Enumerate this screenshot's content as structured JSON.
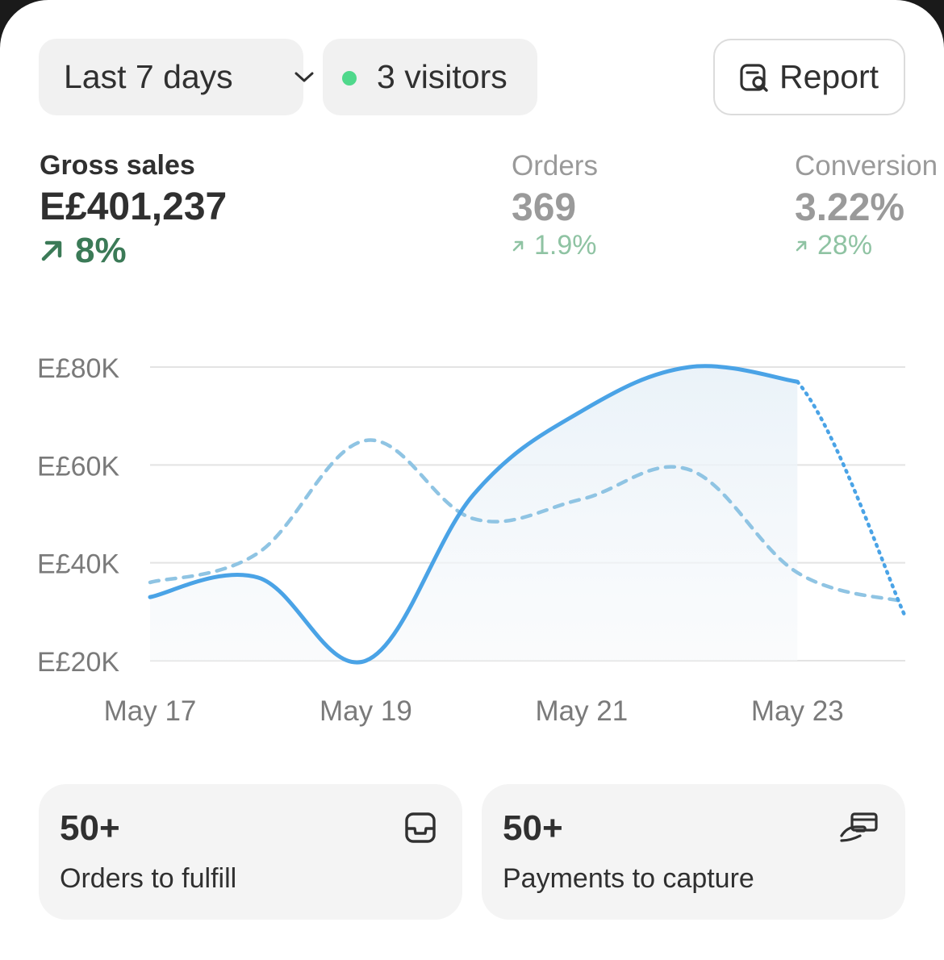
{
  "filters": {
    "date_range": "Last 7 days",
    "visitors": "3 visitors",
    "report_label": "Report"
  },
  "metrics": {
    "gross_sales": {
      "label": "Gross sales",
      "value": "E£401,237",
      "change": "8%"
    },
    "orders": {
      "label": "Orders",
      "value": "369",
      "change": "1.9%"
    },
    "conversion": {
      "label": "Conversion",
      "value": "3.22%",
      "change": "28%"
    }
  },
  "chart_data": {
    "type": "line",
    "y_ticks": [
      "E£80K",
      "E£60K",
      "E£40K",
      "E£20K"
    ],
    "ylim": [
      20000,
      80000
    ],
    "x_tick_labels": [
      "May 17",
      "May 19",
      "May 21",
      "May 23"
    ],
    "colors": {
      "current": "#4aa3e6",
      "previous": "#8fc4e3",
      "grid": "#e3e3e3"
    },
    "series": [
      {
        "x": [
          "May 17",
          "May 18",
          "May 19",
          "May 20",
          "May 21",
          "May 22",
          "May 23",
          "May 24"
        ],
        "values": [
          33000,
          37000,
          20000,
          54000,
          71000,
          80000,
          77000,
          29000
        ],
        "style": "solid"
      },
      {
        "x": [
          "May 17",
          "May 18",
          "May 19",
          "May 20",
          "May 21",
          "May 22",
          "May 23",
          "May 24"
        ],
        "values": [
          36000,
          42000,
          65000,
          49000,
          53000,
          59000,
          38000,
          32000
        ],
        "style": "dashed"
      }
    ]
  },
  "tiles": [
    {
      "count": "50+",
      "label": "Orders to fulfill",
      "icon": "inbox-icon"
    },
    {
      "count": "50+",
      "label": "Payments to capture",
      "icon": "hand-card-icon"
    }
  ]
}
